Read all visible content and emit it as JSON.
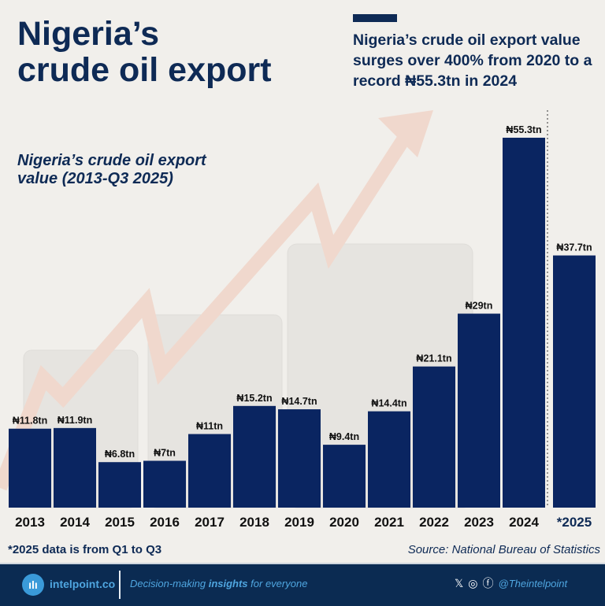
{
  "title_line1": "Nigeria’s",
  "title_line2": "crude oil export",
  "headline": "Nigeria’s crude oil export value surges over 400% from 2020 to a record ₦55.3tn in 2024",
  "chart_data": {
    "type": "bar",
    "title": "Nigeria’s crude oil export value (2013-Q3 2025)",
    "categories": [
      "2013",
      "2014",
      "2015",
      "2016",
      "2017",
      "2018",
      "2019",
      "2020",
      "2021",
      "2022",
      "2023",
      "2024",
      "*2025"
    ],
    "values": [
      11.8,
      11.9,
      6.8,
      7,
      11,
      15.2,
      14.7,
      9.4,
      14.4,
      21.1,
      29,
      55.3,
      37.7
    ],
    "labels": [
      "₦11.8tn",
      "₦11.9tn",
      "₦6.8tn",
      "₦7tn",
      "₦11tn",
      "₦15.2tn",
      "₦14.7tn",
      "₦9.4tn",
      "₦14.4tn",
      "₦21.1tn",
      "₦29tn",
      "₦55.3tn",
      "₦37.7tn"
    ],
    "unit": "₦ trillion",
    "ylim": [
      0,
      55.3
    ],
    "grid": false,
    "bar_color": "#0a2561"
  },
  "subtitle_line1": "Nigeria’s crude oil export",
  "subtitle_line2": "value (2013-Q3 2025)",
  "note": "*2025 data is from Q1 to Q3",
  "source": "Source: National Bureau of Statistics",
  "footer": {
    "logo_glyph": "ılı",
    "brand": "intelpoint.co",
    "tag_pre": "Decision-making ",
    "tag_bold": "insights",
    "tag_post": " for everyone",
    "x_icon": "𝕏",
    "ig_icon": "◎",
    "fb_icon": "ⓕ",
    "handle": "@Theintelpoint"
  }
}
